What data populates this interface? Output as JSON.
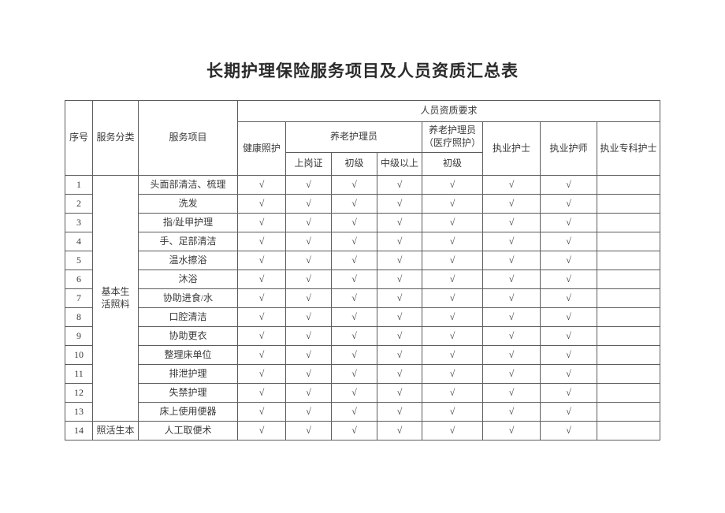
{
  "title": "长期护理保险服务项目及人员资质汇总表",
  "table": {
    "header": {
      "seq": "序号",
      "category": "服务分类",
      "item": "服务项目",
      "qualification_group": "人员资质要求",
      "health_care": "健康照护",
      "elder_care_group": "养老护理员",
      "elder_care_levels": [
        "上岗证",
        "初级",
        "中级以上"
      ],
      "elder_care_medical": "养老护理员\n（医疗照护）",
      "elder_care_medical_level": "初级",
      "licensed_nurse": "执业护士",
      "nurse_practitioner": "执业护师",
      "specialist_nurse": "执业专科护士"
    },
    "check_symbol": "√",
    "rows": [
      {
        "seq": "1",
        "category": "基本生\n活照料",
        "category_rowspan": 13,
        "item": "头面部清洁、梳理",
        "checks": [
          1,
          1,
          1,
          1,
          1,
          1,
          1,
          0
        ]
      },
      {
        "seq": "2",
        "item": "洗发",
        "checks": [
          1,
          1,
          1,
          1,
          1,
          1,
          1,
          0
        ]
      },
      {
        "seq": "3",
        "item": "指/趾甲护理",
        "checks": [
          1,
          1,
          1,
          1,
          1,
          1,
          1,
          0
        ]
      },
      {
        "seq": "4",
        "item": "手、足部清洁",
        "checks": [
          1,
          1,
          1,
          1,
          1,
          1,
          1,
          0
        ]
      },
      {
        "seq": "5",
        "item": "温水擦浴",
        "checks": [
          1,
          1,
          1,
          1,
          1,
          1,
          1,
          0
        ]
      },
      {
        "seq": "6",
        "item": "沐浴",
        "checks": [
          1,
          1,
          1,
          1,
          1,
          1,
          1,
          0
        ]
      },
      {
        "seq": "7",
        "item": "协助进食/水",
        "checks": [
          1,
          1,
          1,
          1,
          1,
          1,
          1,
          0
        ]
      },
      {
        "seq": "8",
        "item": "口腔清洁",
        "checks": [
          1,
          1,
          1,
          1,
          1,
          1,
          1,
          0
        ]
      },
      {
        "seq": "9",
        "item": "协助更衣",
        "checks": [
          1,
          1,
          1,
          1,
          1,
          1,
          1,
          0
        ]
      },
      {
        "seq": "10",
        "item": "整理床单位",
        "checks": [
          1,
          1,
          1,
          1,
          1,
          1,
          1,
          0
        ]
      },
      {
        "seq": "11",
        "item": "排泄护理",
        "checks": [
          1,
          1,
          1,
          1,
          1,
          1,
          1,
          0
        ]
      },
      {
        "seq": "12",
        "item": "失禁护理",
        "checks": [
          1,
          1,
          1,
          1,
          1,
          1,
          1,
          0
        ]
      },
      {
        "seq": "13",
        "item": "床上使用便器",
        "checks": [
          1,
          1,
          1,
          1,
          1,
          1,
          1,
          0
        ]
      },
      {
        "seq": "14",
        "category": "照活生本",
        "category_rowspan": 1,
        "item": "人工取便术",
        "checks": [
          1,
          1,
          1,
          1,
          1,
          1,
          1,
          0
        ]
      }
    ]
  }
}
